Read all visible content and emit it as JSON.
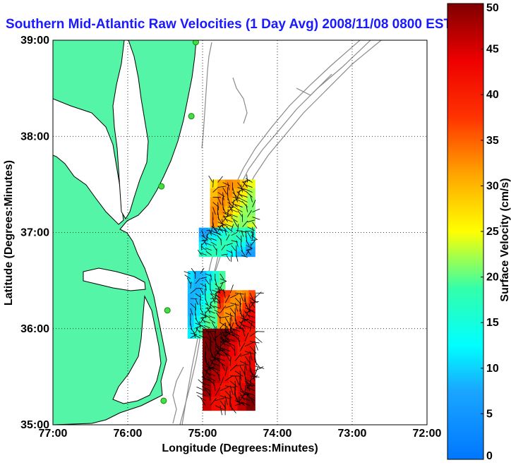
{
  "chart_data": {
    "type": "heatmap",
    "title": "Southern Mid-Atlantic Raw Velocities (1 Day Avg) 2008/11/08 0800 EST",
    "xlabel": "Longitude (Degrees:Minutes)",
    "ylabel": "Latitude (Degrees:Minutes)",
    "x_ticks": [
      {
        "value": -77,
        "label": "77:00"
      },
      {
        "value": -76,
        "label": "76:00"
      },
      {
        "value": -75,
        "label": "75:00"
      },
      {
        "value": -74,
        "label": "74:00"
      },
      {
        "value": -73,
        "label": "73:00"
      },
      {
        "value": -72,
        "label": "72:00"
      }
    ],
    "y_ticks": [
      {
        "value": 35,
        "label": "35:00"
      },
      {
        "value": 36,
        "label": "36:00"
      },
      {
        "value": 37,
        "label": "37:00"
      },
      {
        "value": 38,
        "label": "38:00"
      },
      {
        "value": 39,
        "label": "39:00"
      }
    ],
    "xlim": [
      -77,
      -72
    ],
    "ylim": [
      35,
      39
    ],
    "grid": true,
    "colorbar": {
      "label": "Surface Velocity (cm/s)",
      "range": [
        0,
        50
      ],
      "ticks": [
        "0",
        "5",
        "10",
        "15",
        "20",
        "25",
        "30",
        "35",
        "40",
        "45",
        "50"
      ],
      "colormap": "jet"
    },
    "stations": [
      {
        "lon": -75.09,
        "lat": 38.98
      },
      {
        "lon": -75.15,
        "lat": 38.21
      },
      {
        "lon": -75.55,
        "lat": 37.48
      },
      {
        "lon": -75.47,
        "lat": 36.19
      },
      {
        "lon": -75.52,
        "lat": 35.25
      }
    ],
    "regions": [
      {
        "lon": [
          -74.9,
          -74.3
        ],
        "lat": [
          37.0,
          37.55
        ],
        "speed": 27
      },
      {
        "lon": [
          -75.05,
          -74.3
        ],
        "lat": [
          36.75,
          37.05
        ],
        "speed": 12
      },
      {
        "lon": [
          -75.2,
          -74.7
        ],
        "lat": [
          35.9,
          36.6
        ],
        "speed": 14
      },
      {
        "lon": [
          -74.8,
          -74.3
        ],
        "lat": [
          36.0,
          36.4
        ],
        "speed": 38
      },
      {
        "lon": [
          -75.0,
          -74.3
        ],
        "lat": [
          35.15,
          36.0
        ],
        "speed": 47
      }
    ]
  },
  "colors": {
    "land": "#55f5a8",
    "coastline": "#000000",
    "bathymetry": "#8a8a8a",
    "title": "#1a1aff",
    "station": "#44dd44"
  }
}
